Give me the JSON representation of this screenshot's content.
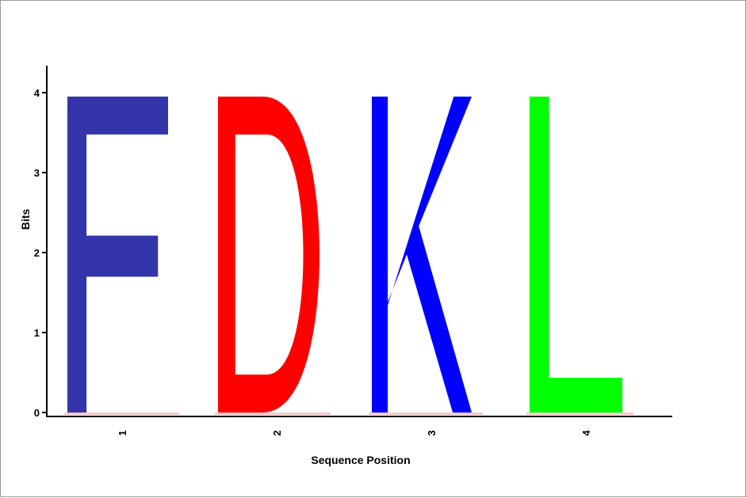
{
  "chart_data": {
    "type": "sequence-logo",
    "xlabel": "Sequence Position",
    "ylabel": "Bits",
    "ylim": [
      0,
      4
    ],
    "yticks": [
      "0",
      "1",
      "2",
      "3",
      "4"
    ],
    "positions": [
      "1",
      "2",
      "3",
      "4"
    ],
    "letters": [
      {
        "position": "1",
        "letter": "F",
        "bits": 3.95,
        "color": "#3333aa"
      },
      {
        "position": "2",
        "letter": "D",
        "bits": 3.95,
        "color": "#ff0000"
      },
      {
        "position": "3",
        "letter": "K",
        "bits": 3.95,
        "color": "#0000ff"
      },
      {
        "position": "4",
        "letter": "L",
        "bits": 3.95,
        "color": "#00ff00"
      }
    ]
  }
}
